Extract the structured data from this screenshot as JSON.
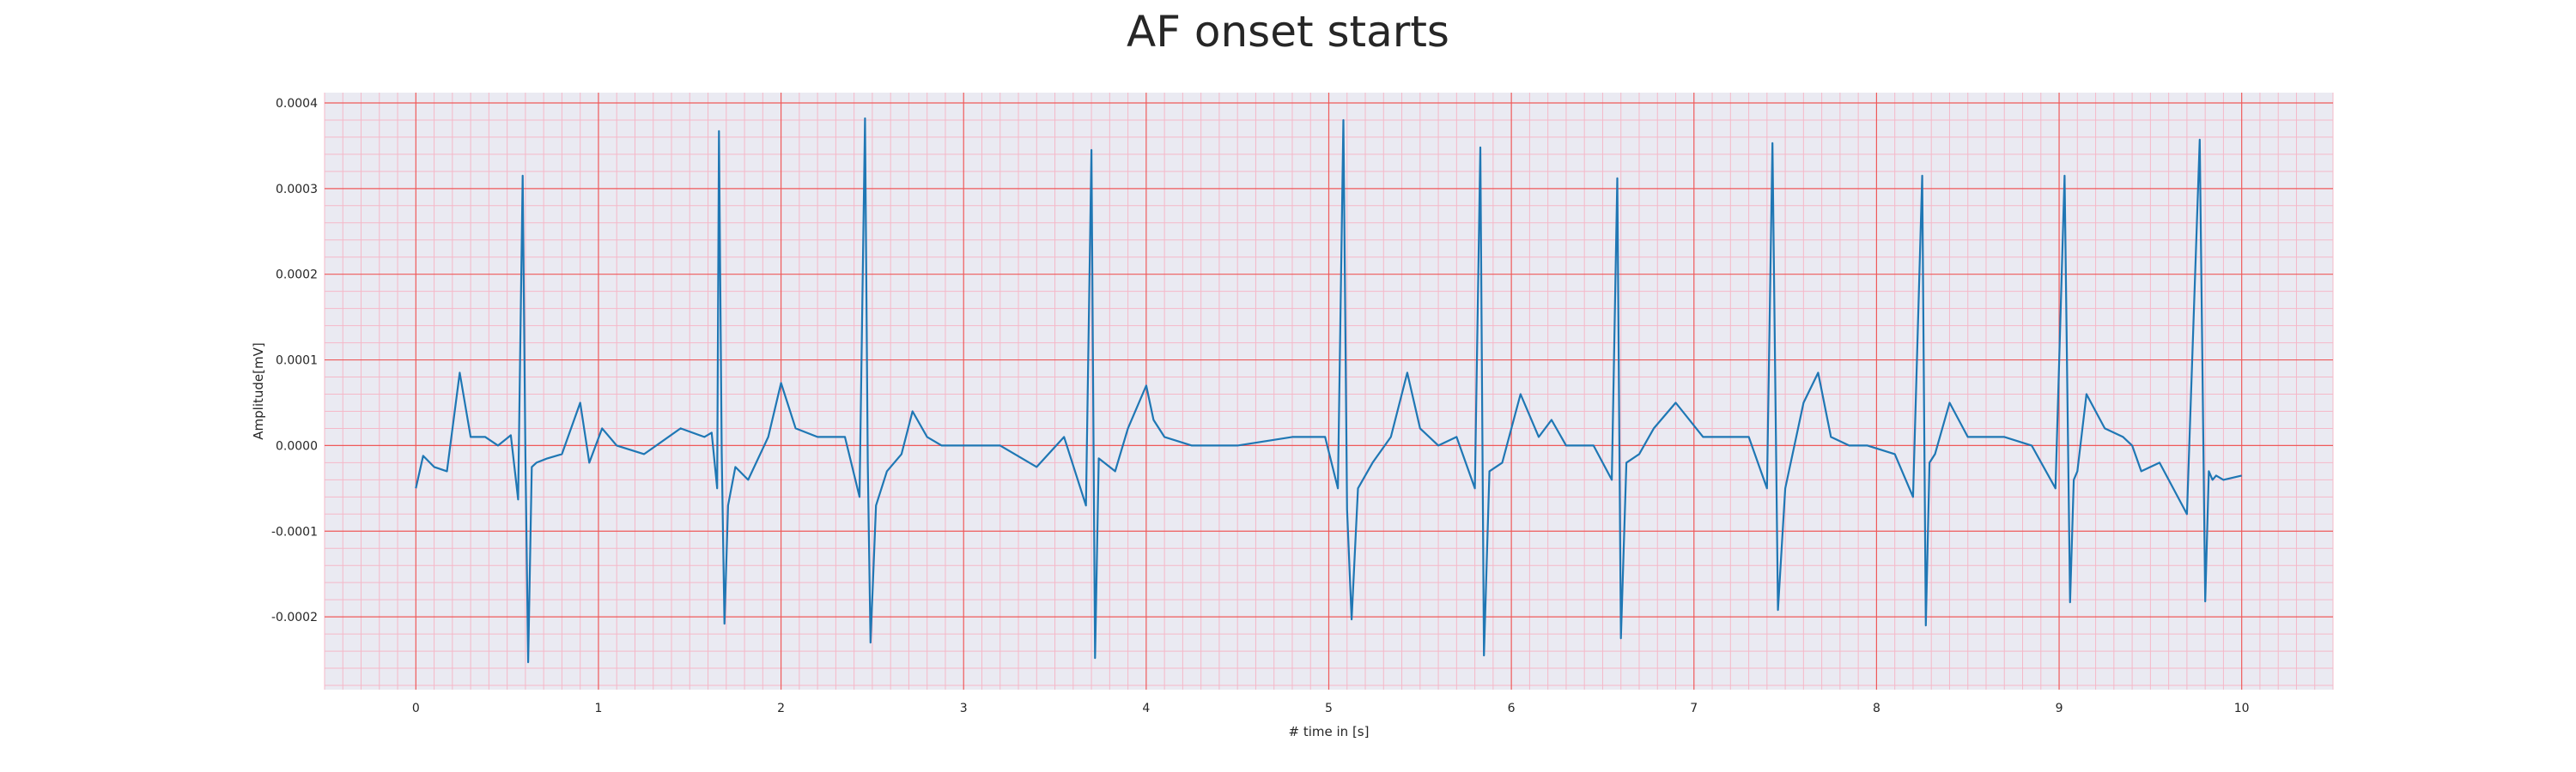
{
  "chart_data": {
    "type": "line",
    "title": "AF onset starts",
    "xlabel": "# time in [s]",
    "ylabel": "Amplitude[mV]",
    "xlim": [
      -0.5,
      10.5
    ],
    "ylim": [
      -0.000285,
      0.000412
    ],
    "x_ticks": [
      0,
      1,
      2,
      3,
      4,
      5,
      6,
      7,
      8,
      9,
      10
    ],
    "x_tick_labels": [
      "0",
      "1",
      "2",
      "3",
      "4",
      "5",
      "6",
      "7",
      "8",
      "9",
      "10"
    ],
    "y_ticks": [
      -0.0002,
      -0.0001,
      0.0,
      0.0001,
      0.0002,
      0.0003,
      0.0004
    ],
    "y_tick_labels": [
      "-0.0002",
      "-0.0001",
      "0.0000",
      "0.0001",
      "0.0002",
      "0.0003",
      "0.0004"
    ],
    "grid": true,
    "minor_grid": true,
    "series": [
      {
        "color": "#1f77b4",
        "x": [
          0,
          0.04,
          0.1,
          0.17,
          0.24,
          0.3,
          0.38,
          0.45,
          0.52,
          0.56,
          0.585,
          0.6,
          0.615,
          0.635,
          0.66,
          0.72,
          0.8,
          0.9,
          0.95,
          1.02,
          1.1,
          1.25,
          1.45,
          1.58,
          1.62,
          1.65,
          1.66,
          1.675,
          1.69,
          1.71,
          1.75,
          1.82,
          1.93,
          2.0,
          2.08,
          2.2,
          2.35,
          2.43,
          2.46,
          2.475,
          2.49,
          2.52,
          2.58,
          2.66,
          2.72,
          2.8,
          2.88,
          3.0,
          3.2,
          3.4,
          3.55,
          3.67,
          3.7,
          3.72,
          3.74,
          3.77,
          3.83,
          3.9,
          4.0,
          4.04,
          4.1,
          4.25,
          4.5,
          4.8,
          4.98,
          5.05,
          5.08,
          5.1,
          5.125,
          5.16,
          5.24,
          5.34,
          5.43,
          5.5,
          5.6,
          5.7,
          5.8,
          5.83,
          5.85,
          5.88,
          5.95,
          6.05,
          6.15,
          6.22,
          6.3,
          6.45,
          6.55,
          6.58,
          6.6,
          6.63,
          6.7,
          6.78,
          6.9,
          7.05,
          7.15,
          7.3,
          7.4,
          7.43,
          7.46,
          7.5,
          7.6,
          7.68,
          7.75,
          7.85,
          7.95,
          8.1,
          8.2,
          8.25,
          8.27,
          8.29,
          8.32,
          8.4,
          8.5,
          8.6,
          8.7,
          8.85,
          8.98,
          9.03,
          9.06,
          9.08,
          9.1,
          9.15,
          9.25,
          9.35,
          9.4,
          9.45,
          9.55,
          9.7,
          9.77,
          9.8,
          9.82,
          9.84,
          9.86,
          9.9,
          10.0
        ],
        "y": [
          -5e-05,
          -1.2e-05,
          -2.5e-05,
          -3e-05,
          8.5e-05,
          1e-05,
          1e-05,
          0.0,
          1.2e-05,
          -6.3e-05,
          0.000315,
          -1.2e-05,
          -0.000253,
          -2.5e-05,
          -2e-05,
          -1.5e-05,
          -1e-05,
          5e-05,
          -2e-05,
          2e-05,
          0.0,
          -1e-05,
          2e-05,
          1e-05,
          1.5e-05,
          -5e-05,
          0.000367,
          -8e-06,
          -0.000208,
          -7e-05,
          -2.5e-05,
          -4e-05,
          1e-05,
          7.3e-05,
          2e-05,
          1e-05,
          1e-05,
          -6e-05,
          0.000382,
          -2e-05,
          -0.00023,
          -7e-05,
          -3e-05,
          -1e-05,
          4e-05,
          1e-05,
          0.0,
          0.0,
          0.0,
          -2.5e-05,
          1e-05,
          -7e-05,
          0.000345,
          -0.000248,
          -1.5e-05,
          -2e-05,
          -3e-05,
          2e-05,
          7e-05,
          3e-05,
          1e-05,
          0.0,
          0.0,
          1e-05,
          1e-05,
          -5e-05,
          0.00038,
          -7.5e-05,
          -0.000203,
          -5e-05,
          -2e-05,
          1e-05,
          8.5e-05,
          2e-05,
          0.0,
          1e-05,
          -5e-05,
          0.000348,
          -0.000245,
          -3e-05,
          -2e-05,
          6e-05,
          1e-05,
          3e-05,
          0.0,
          0.0,
          -4e-05,
          0.000312,
          -0.000225,
          -2e-05,
          -1e-05,
          2e-05,
          5e-05,
          1e-05,
          1e-05,
          1e-05,
          -5e-05,
          0.000353,
          -0.000192,
          -5e-05,
          5e-05,
          8.5e-05,
          1e-05,
          0.0,
          0.0,
          -1e-05,
          -6e-05,
          0.000315,
          -0.00021,
          -2e-05,
          -1e-05,
          5e-05,
          1e-05,
          1e-05,
          1e-05,
          0.0,
          -5e-05,
          0.000315,
          -0.000183,
          -4e-05,
          -3e-05,
          6e-05,
          2e-05,
          1e-05,
          0.0,
          -3e-05,
          -2e-05,
          -8e-05,
          0.000357,
          -0.000182,
          -3e-05,
          -4e-05,
          -3.5e-05,
          -4e-05,
          -3.5e-05
        ]
      }
    ]
  }
}
